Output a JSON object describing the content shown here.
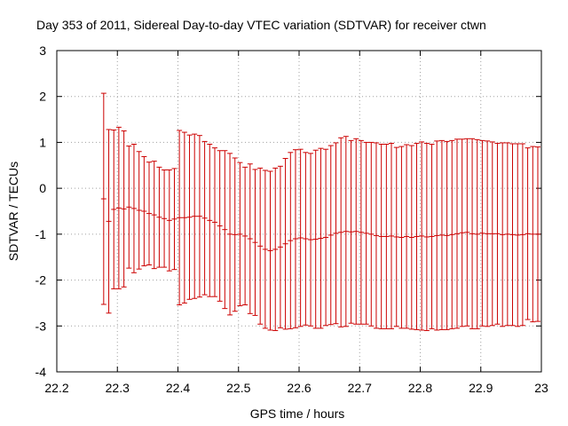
{
  "chart_data": {
    "type": "errorbar",
    "title": "Day 353 of 2011, Sidereal Day-to-day VTEC variation (SDTVAR) for receiver ctwn",
    "xlabel": "GPS time / hours",
    "ylabel": "SDTVAR / TECUs",
    "xlim": [
      22.2,
      23.0
    ],
    "ylim": [
      -4,
      3
    ],
    "x_ticks": [
      "22.2",
      "22.3",
      "22.4",
      "22.5",
      "22.6",
      "22.7",
      "22.8",
      "22.9",
      "23"
    ],
    "y_ticks": [
      "-4",
      "-3",
      "-2",
      "-1",
      "0",
      "1",
      "2",
      "3"
    ],
    "grid": true,
    "legend": "none",
    "series_color": "#cc0000",
    "series": [
      {
        "x": [
          22.2774,
          22.2858,
          22.2941,
          22.3024,
          22.3108,
          22.3191,
          22.3274,
          22.3358,
          22.3441,
          22.3524,
          22.3608,
          22.3691,
          22.3774,
          22.3858,
          22.3941,
          22.4024,
          22.4108,
          22.4191,
          22.4274,
          22.4358,
          22.4441,
          22.4524,
          22.4608,
          22.4691,
          22.4774,
          22.4858,
          22.4941,
          22.5024,
          22.5108,
          22.5191,
          22.5274,
          22.5358,
          22.5441,
          22.5524,
          22.5608,
          22.5691,
          22.5774,
          22.5858,
          22.5941,
          22.6024,
          22.6108,
          22.6191,
          22.6274,
          22.6358,
          22.6441,
          22.6524,
          22.6608,
          22.6691,
          22.6774,
          22.6858,
          22.6941,
          22.7024,
          22.7108,
          22.7191,
          22.7274,
          22.7358,
          22.7441,
          22.7524,
          22.7608,
          22.7691,
          22.7774,
          22.7858,
          22.7941,
          22.8024,
          22.8108,
          22.8191,
          22.8274,
          22.8358,
          22.8441,
          22.8524,
          22.8608,
          22.8691,
          22.8774,
          22.8858,
          22.8941,
          22.9024,
          22.9108,
          22.9191,
          22.9274,
          22.9358,
          22.9441,
          22.9524,
          22.9608,
          22.9691,
          22.9774,
          22.9858,
          22.9941
        ],
        "y": [
          -0.23,
          -0.72,
          -0.46,
          -0.43,
          -0.45,
          -0.41,
          -0.44,
          -0.48,
          -0.5,
          -0.55,
          -0.58,
          -0.63,
          -0.66,
          -0.7,
          -0.67,
          -0.64,
          -0.64,
          -0.63,
          -0.61,
          -0.61,
          -0.65,
          -0.7,
          -0.74,
          -0.82,
          -0.9,
          -1.0,
          -1.01,
          -1.0,
          -1.04,
          -1.1,
          -1.18,
          -1.26,
          -1.33,
          -1.36,
          -1.33,
          -1.28,
          -1.21,
          -1.14,
          -1.1,
          -1.08,
          -1.1,
          -1.12,
          -1.11,
          -1.09,
          -1.07,
          -1.02,
          -0.98,
          -0.96,
          -0.94,
          -0.95,
          -0.94,
          -0.96,
          -0.98,
          -1.0,
          -1.03,
          -1.05,
          -1.05,
          -1.04,
          -1.06,
          -1.07,
          -1.05,
          -1.07,
          -1.05,
          -1.04,
          -1.06,
          -1.05,
          -1.03,
          -1.02,
          -1.03,
          -1.01,
          -0.99,
          -0.97,
          -0.96,
          -0.99,
          -1.0,
          -0.98,
          -0.99,
          -0.99,
          -0.99,
          -1.01,
          -1.0,
          -1.01,
          -1.02,
          -1.01,
          -0.99,
          -1.0,
          -1.0
        ],
        "yerr": [
          2.3,
          2.0,
          1.73,
          1.76,
          1.7,
          1.33,
          1.4,
          1.28,
          1.19,
          1.12,
          1.17,
          1.09,
          1.06,
          1.1,
          1.1,
          1.9,
          1.86,
          1.79,
          1.79,
          1.76,
          1.67,
          1.66,
          1.62,
          1.64,
          1.72,
          1.76,
          1.67,
          1.56,
          1.5,
          1.63,
          1.59,
          1.7,
          1.72,
          1.73,
          1.77,
          1.76,
          1.86,
          1.92,
          1.94,
          1.93,
          1.88,
          1.88,
          1.94,
          1.96,
          1.92,
          1.95,
          1.97,
          2.06,
          2.07,
          1.99,
          2.02,
          2.0,
          1.98,
          2.0,
          2.02,
          2.01,
          2.01,
          2.02,
          1.95,
          1.98,
          2.0,
          2.0,
          2.03,
          2.05,
          2.04,
          2.01,
          2.06,
          2.06,
          2.05,
          2.05,
          2.06,
          2.04,
          2.04,
          2.07,
          2.06,
          2.02,
          2.02,
          2.0,
          1.97,
          2.0,
          1.99,
          1.98,
          1.99,
          1.98,
          1.87,
          1.91,
          1.9
        ]
      }
    ]
  }
}
